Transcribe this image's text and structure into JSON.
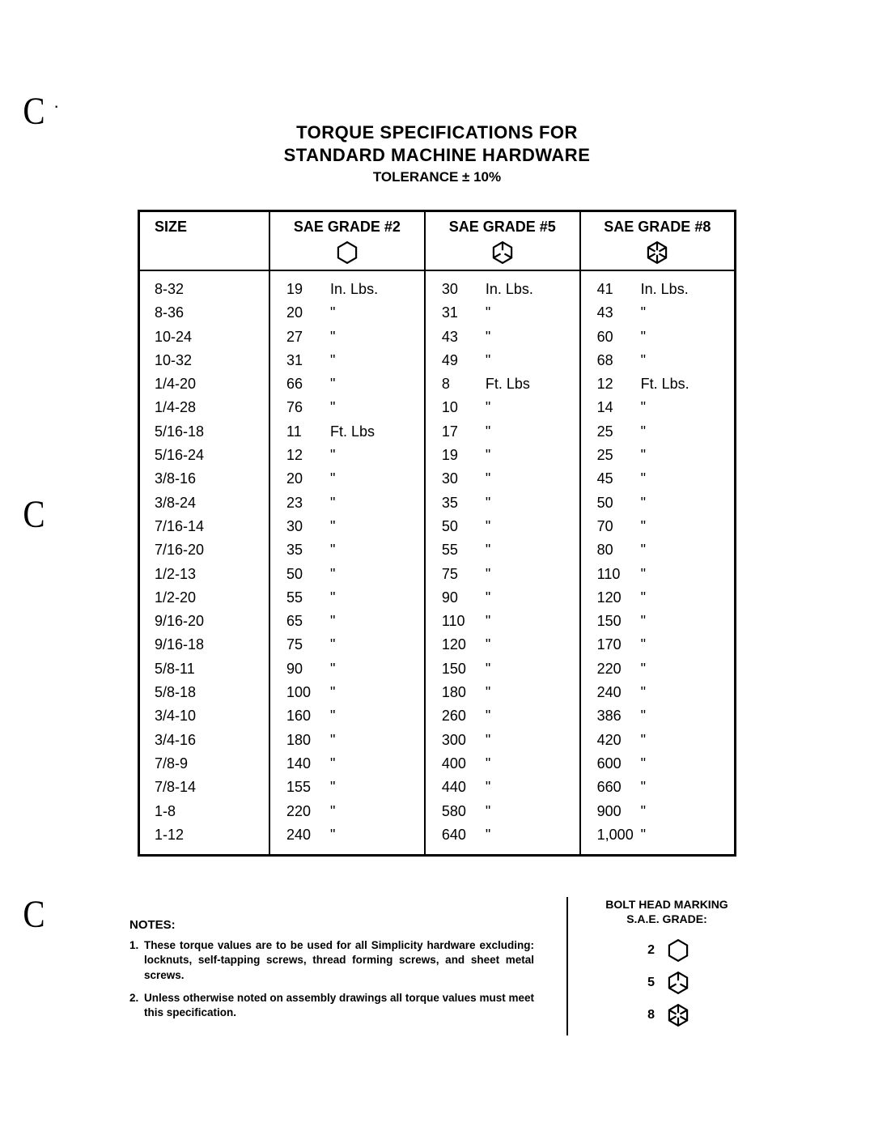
{
  "title_line1": "TORQUE SPECIFICATIONS FOR",
  "title_line2": "STANDARD MACHINE HARDWARE",
  "subtitle": "TOLERANCE   ± 10%",
  "columns": [
    "SIZE",
    "SAE GRADE #2",
    "SAE GRADE #5",
    "SAE GRADE #8"
  ],
  "ditto": "\"",
  "rows": [
    {
      "size": "8-32",
      "g2_val": "19",
      "g2_unit": "In. Lbs.",
      "g5_val": "30",
      "g5_unit": "In. Lbs.",
      "g8_val": "41",
      "g8_unit": "In. Lbs."
    },
    {
      "size": "8-36",
      "g2_val": "20",
      "g2_unit": "\"",
      "g5_val": "31",
      "g5_unit": "\"",
      "g8_val": "43",
      "g8_unit": "\""
    },
    {
      "size": "10-24",
      "g2_val": "27",
      "g2_unit": "\"",
      "g5_val": "43",
      "g5_unit": "\"",
      "g8_val": "60",
      "g8_unit": "\""
    },
    {
      "size": "10-32",
      "g2_val": "31",
      "g2_unit": "\"",
      "g5_val": "49",
      "g5_unit": "\"",
      "g8_val": "68",
      "g8_unit": "\""
    },
    {
      "size": "1/4-20",
      "g2_val": "66",
      "g2_unit": "\"",
      "g5_val": "8",
      "g5_unit": "Ft. Lbs",
      "g8_val": "12",
      "g8_unit": "Ft. Lbs."
    },
    {
      "size": "1/4-28",
      "g2_val": "76",
      "g2_unit": "\"",
      "g5_val": "10",
      "g5_unit": "\"",
      "g8_val": "14",
      "g8_unit": "\""
    },
    {
      "size": "5/16-18",
      "g2_val": "11",
      "g2_unit": "Ft. Lbs",
      "g5_val": "17",
      "g5_unit": "\"",
      "g8_val": "25",
      "g8_unit": "\""
    },
    {
      "size": "5/16-24",
      "g2_val": "12",
      "g2_unit": "\"",
      "g5_val": "19",
      "g5_unit": "\"",
      "g8_val": "25",
      "g8_unit": "\""
    },
    {
      "size": "3/8-16",
      "g2_val": "20",
      "g2_unit": "\"",
      "g5_val": "30",
      "g5_unit": "\"",
      "g8_val": "45",
      "g8_unit": "\""
    },
    {
      "size": "3/8-24",
      "g2_val": "23",
      "g2_unit": "\"",
      "g5_val": "35",
      "g5_unit": "\"",
      "g8_val": "50",
      "g8_unit": "\""
    },
    {
      "size": "7/16-14",
      "g2_val": "30",
      "g2_unit": "\"",
      "g5_val": "50",
      "g5_unit": "\"",
      "g8_val": "70",
      "g8_unit": "\""
    },
    {
      "size": "7/16-20",
      "g2_val": "35",
      "g2_unit": "\"",
      "g5_val": "55",
      "g5_unit": "\"",
      "g8_val": "80",
      "g8_unit": "\""
    },
    {
      "size": "1/2-13",
      "g2_val": "50",
      "g2_unit": "\"",
      "g5_val": "75",
      "g5_unit": "\"",
      "g8_val": "110",
      "g8_unit": "\""
    },
    {
      "size": "1/2-20",
      "g2_val": "55",
      "g2_unit": "\"",
      "g5_val": "90",
      "g5_unit": "\"",
      "g8_val": "120",
      "g8_unit": "\""
    },
    {
      "size": "9/16-20",
      "g2_val": "65",
      "g2_unit": "\"",
      "g5_val": "110",
      "g5_unit": "\"",
      "g8_val": "150",
      "g8_unit": "\""
    },
    {
      "size": "9/16-18",
      "g2_val": "75",
      "g2_unit": "\"",
      "g5_val": "120",
      "g5_unit": "\"",
      "g8_val": "170",
      "g8_unit": "\""
    },
    {
      "size": "5/8-11",
      "g2_val": "90",
      "g2_unit": "\"",
      "g5_val": "150",
      "g5_unit": "\"",
      "g8_val": "220",
      "g8_unit": "\""
    },
    {
      "size": "5/8-18",
      "g2_val": "100",
      "g2_unit": "\"",
      "g5_val": "180",
      "g5_unit": "\"",
      "g8_val": "240",
      "g8_unit": "\""
    },
    {
      "size": "3/4-10",
      "g2_val": "160",
      "g2_unit": "\"",
      "g5_val": "260",
      "g5_unit": "\"",
      "g8_val": "386",
      "g8_unit": "\""
    },
    {
      "size": "3/4-16",
      "g2_val": "180",
      "g2_unit": "\"",
      "g5_val": "300",
      "g5_unit": "\"",
      "g8_val": "420",
      "g8_unit": "\""
    },
    {
      "size": "7/8-9",
      "g2_val": "140",
      "g2_unit": "\"",
      "g5_val": "400",
      "g5_unit": "\"",
      "g8_val": "600",
      "g8_unit": "\""
    },
    {
      "size": "7/8-14",
      "g2_val": "155",
      "g2_unit": "\"",
      "g5_val": "440",
      "g5_unit": "\"",
      "g8_val": "660",
      "g8_unit": "\""
    },
    {
      "size": "1-8",
      "g2_val": "220",
      "g2_unit": "\"",
      "g5_val": "580",
      "g5_unit": "\"",
      "g8_val": "900",
      "g8_unit": "\""
    },
    {
      "size": "1-12",
      "g2_val": "240",
      "g2_unit": "\"",
      "g5_val": "640",
      "g5_unit": "\"",
      "g8_val": "1,000",
      "g8_unit": "\""
    }
  ],
  "notes_title": "NOTES:",
  "notes": [
    {
      "n": "1.",
      "text": "These torque values are to be used for all Simplicity hardware excluding: locknuts, self-tapping screws, thread forming screws, and sheet metal screws."
    },
    {
      "n": "2.",
      "text": "Unless otherwise noted on assembly drawings all torque values must meet this specification."
    }
  ],
  "legend_title_l1": "BOLT HEAD MARKING",
  "legend_title_l2": "S.A.E. GRADE:",
  "legend": [
    {
      "grade": "2",
      "marks": 0
    },
    {
      "grade": "5",
      "marks": 3
    },
    {
      "grade": "8",
      "marks": 6
    }
  ],
  "style": {
    "bg": "#ffffff",
    "fg": "#000000",
    "border_width": 3,
    "inner_border": 2,
    "title_fontsize": 22,
    "subtitle_fontsize": 17,
    "body_fontsize": 18,
    "notes_fontsize": 13.5,
    "hex_size_header": 30,
    "hex_size_legend": 30,
    "hex_stroke": 2.2
  }
}
